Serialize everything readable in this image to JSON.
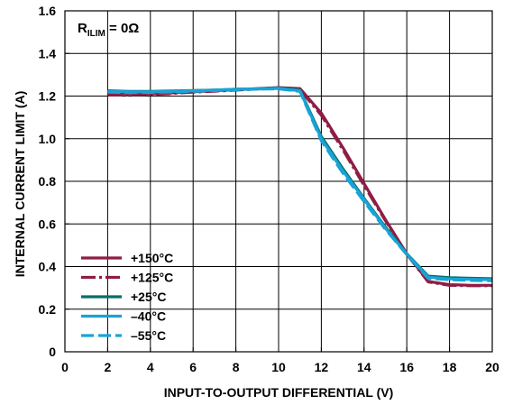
{
  "chart_data": {
    "type": "line",
    "xlabel": "INPUT-TO-OUTPUT DIFFERENTIAL (V)",
    "ylabel": "INTERNAL CURRENT LIMIT (A)",
    "xlim": [
      0,
      20
    ],
    "ylim": [
      0,
      1.6
    ],
    "x_ticks": [
      "0",
      "2",
      "4",
      "6",
      "8",
      "10",
      "12",
      "14",
      "16",
      "18",
      "20"
    ],
    "y_ticks": [
      "0",
      "0.2",
      "0.4",
      "0.6",
      "0.8",
      "1.0",
      "1.2",
      "1.4",
      "1.6"
    ],
    "grid": true,
    "legend_position": "bottom-left",
    "annotation": {
      "main": "R",
      "subscript": "ILIM",
      "value": " =  0Ω"
    },
    "series": [
      {
        "name": "+150°C",
        "color": "#8f1d45",
        "dash": "solid",
        "x": [
          2,
          3,
          4,
          5,
          6,
          7,
          8,
          9,
          10,
          11,
          12,
          13,
          14,
          15,
          16,
          17,
          18,
          19,
          20
        ],
        "y": [
          1.21,
          1.21,
          1.21,
          1.215,
          1.22,
          1.225,
          1.23,
          1.235,
          1.24,
          1.235,
          1.12,
          0.96,
          0.79,
          0.62,
          0.46,
          0.33,
          0.315,
          0.312,
          0.312
        ]
      },
      {
        "name": "+125°C",
        "color": "#8f1d45",
        "dash": "dash-dot",
        "x": [
          2,
          3,
          4,
          5,
          6,
          7,
          8,
          9,
          10,
          11,
          12,
          13,
          14,
          15,
          16,
          17,
          18,
          19,
          20
        ],
        "y": [
          1.205,
          1.205,
          1.208,
          1.212,
          1.218,
          1.223,
          1.228,
          1.233,
          1.238,
          1.23,
          1.11,
          0.95,
          0.78,
          0.615,
          0.458,
          0.328,
          0.312,
          0.31,
          0.31
        ]
      },
      {
        "name": "+25°C",
        "color": "#00706b",
        "dash": "solid",
        "x": [
          2,
          3,
          4,
          5,
          6,
          7,
          8,
          9,
          10,
          11,
          12,
          13,
          14,
          15,
          16,
          17,
          18,
          19,
          20
        ],
        "y": [
          1.225,
          1.222,
          1.222,
          1.224,
          1.226,
          1.228,
          1.232,
          1.234,
          1.238,
          1.228,
          1.01,
          0.86,
          0.72,
          0.585,
          0.46,
          0.355,
          0.348,
          0.345,
          0.343
        ]
      },
      {
        "name": "–40°C",
        "color": "#19a3d6",
        "dash": "solid",
        "x": [
          2,
          3,
          4,
          5,
          6,
          7,
          8,
          9,
          10,
          11,
          12,
          13,
          14,
          15,
          16,
          17,
          18,
          19,
          20
        ],
        "y": [
          1.222,
          1.22,
          1.22,
          1.222,
          1.225,
          1.228,
          1.232,
          1.234,
          1.236,
          1.225,
          1.0,
          0.85,
          0.715,
          0.58,
          0.458,
          0.35,
          0.342,
          0.34,
          0.338
        ]
      },
      {
        "name": "–55°C",
        "color": "#19a3d6",
        "dash": "long-dash",
        "x": [
          2,
          3,
          4,
          5,
          6,
          7,
          8,
          9,
          10,
          11,
          12,
          13,
          14,
          15,
          16,
          17,
          18,
          19,
          20
        ],
        "y": [
          1.218,
          1.216,
          1.217,
          1.219,
          1.222,
          1.226,
          1.23,
          1.232,
          1.234,
          1.222,
          0.99,
          0.84,
          0.705,
          0.575,
          0.456,
          0.345,
          0.338,
          0.335,
          0.333
        ]
      }
    ]
  }
}
